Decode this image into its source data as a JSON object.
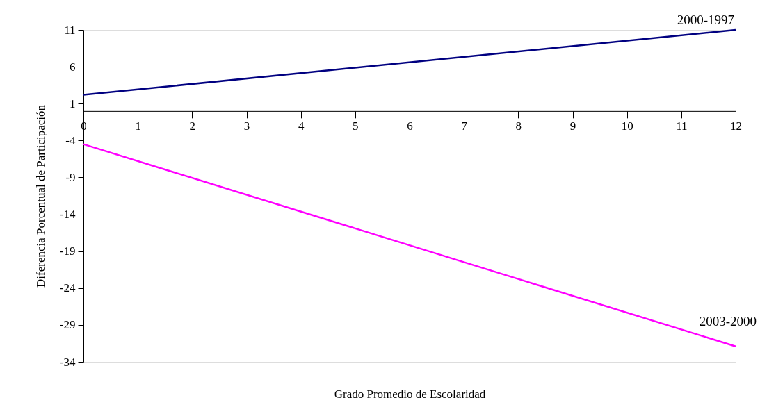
{
  "chart_data": {
    "type": "line",
    "xlabel": "Grado Promedio de Escolaridad",
    "ylabel": "Diferencia Porcentual de Participación",
    "x": [
      0,
      12
    ],
    "series": [
      {
        "name": "2000-1997",
        "color": "#000080",
        "values": [
          2.2,
          11
        ]
      },
      {
        "name": "2003-2000",
        "color": "#ff00ff",
        "values": [
          -4.5,
          -31.9
        ]
      }
    ],
    "xlim": [
      0,
      12
    ],
    "xticks": [
      0,
      1,
      2,
      3,
      4,
      5,
      6,
      7,
      8,
      9,
      10,
      11,
      12
    ],
    "ylim": [
      -34,
      11
    ],
    "yticks": [
      11,
      6,
      1,
      -4,
      -9,
      -14,
      -19,
      -24,
      -29,
      -34
    ],
    "grid": false,
    "legend": false,
    "marker": "none",
    "line_style": "solid"
  }
}
